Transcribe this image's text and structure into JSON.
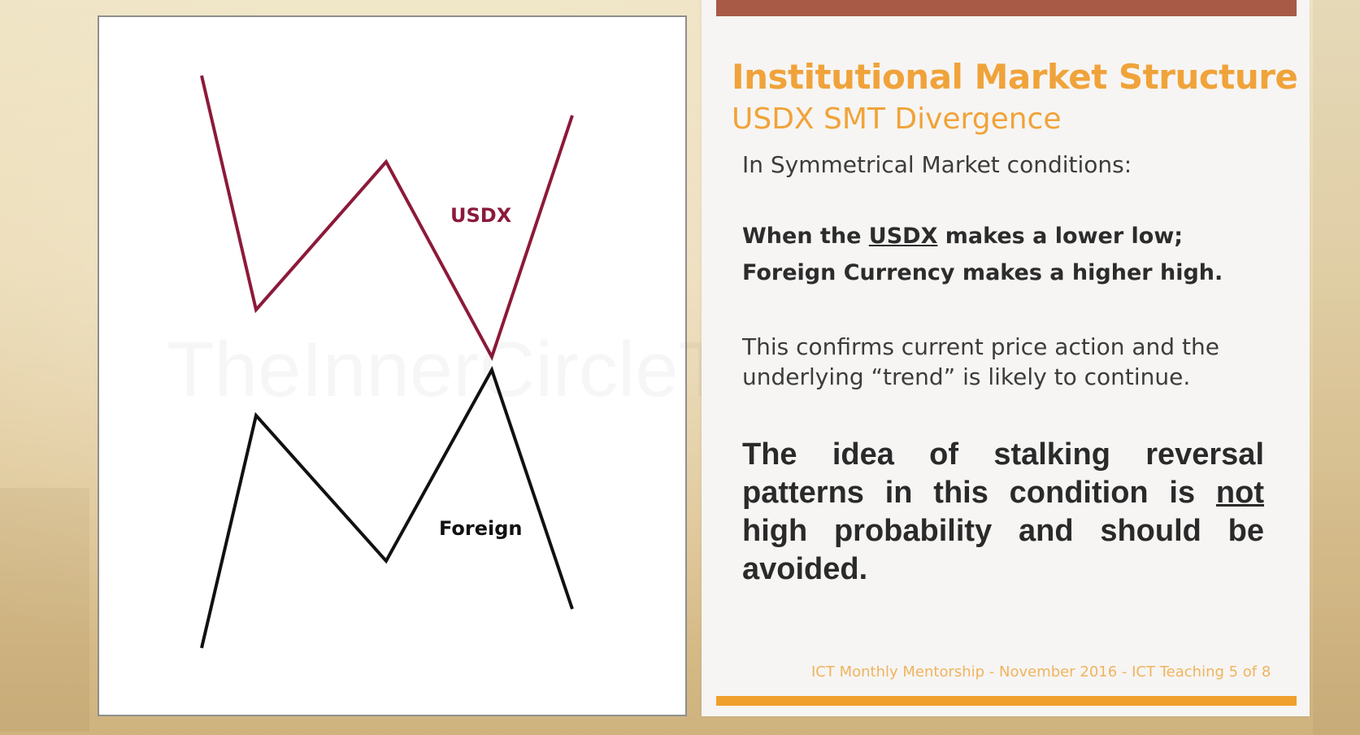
{
  "diagram": {
    "usdx_label": "USDX",
    "foreign_label": "Foreign",
    "usdx_color": "#8c1a3a",
    "foreign_color": "#111111"
  },
  "watermark": "TheInnerCircleTrader.com",
  "slide": {
    "title": "Institutional Market Structure",
    "subtitle": "USDX SMT Divergence",
    "intro": "In Symmetrical Market conditions:",
    "rule_line1_prefix": "When the ",
    "rule_line1_emphasis": "USDX",
    "rule_line1_suffix": " makes a lower low;",
    "rule_line2": "Foreign Currency makes a higher high.",
    "confirm_text": "This confirms current price action and the underlying “trend” is likely to continue.",
    "warning_prefix": "The idea of stalking reversal patterns in this condition is ",
    "warning_emphasis": "not",
    "warning_suffix": " high probability and should be avoided.",
    "footer": "ICT Monthly Mentorship - November 2016 - ICT Teaching 5 of 8"
  },
  "colors": {
    "accent": "#f0a33a",
    "top_bar": "#a85a47",
    "bottom_bar": "#f0a02c"
  }
}
